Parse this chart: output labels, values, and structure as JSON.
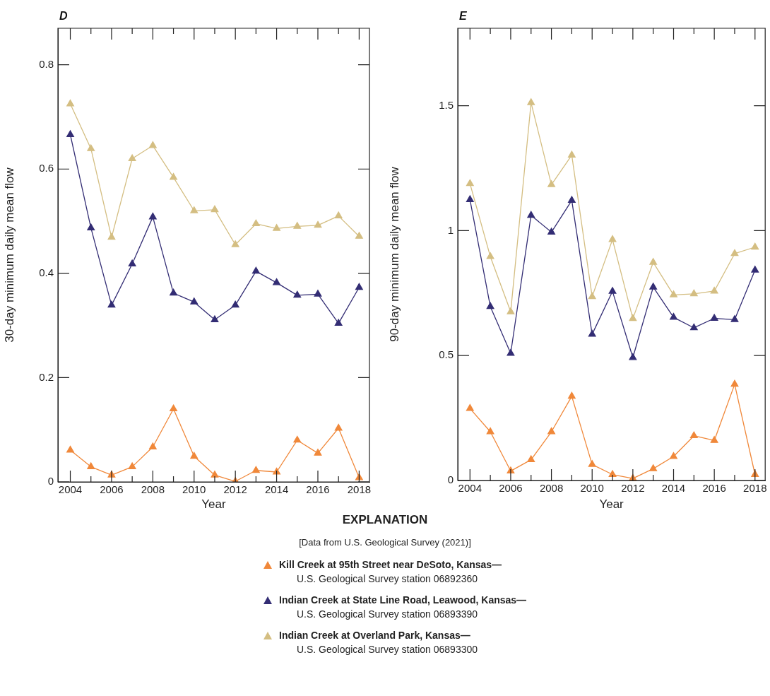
{
  "chart_data": [
    {
      "type": "line",
      "title": "D",
      "xlabel": "Year",
      "ylabel": "30-day minimum daily mean flow",
      "legend_title": "EXPLANATION",
      "annotations": [
        "[Data from U.S. Geological Survey (2021)]"
      ],
      "legend": "bottom",
      "marker": "triangle",
      "x": [
        2004,
        2005,
        2006,
        2007,
        2008,
        2009,
        2010,
        2011,
        2012,
        2013,
        2014,
        2015,
        2016,
        2017,
        2018
      ],
      "xlim": [
        2003.4,
        2018.5
      ],
      "xticks": [
        2004,
        {
          "value": 2005,
          "label": null
        },
        2006,
        {
          "value": 2007,
          "label": null
        },
        2008,
        {
          "value": 2009,
          "label": null
        },
        2010,
        {
          "value": 2011,
          "label": null
        },
        2012,
        {
          "value": 2013,
          "label": null
        },
        2014,
        {
          "value": 2015,
          "label": null
        },
        2016,
        {
          "value": 2017,
          "label": null
        },
        2018
      ],
      "ylim": [
        0,
        0.87
      ],
      "yticks": [
        0,
        0.2,
        0.4,
        0.6,
        0.8
      ],
      "series": [
        {
          "name": "Kill Creek at 95th Street near DeSoto, Kansas—\nU.S. Geological Survey station 06892360",
          "color": "#f0883a",
          "values": [
            0.061,
            0.029,
            0.013,
            0.029,
            0.067,
            0.14,
            0.049,
            0.013,
            0.001,
            0.022,
            0.019,
            0.08,
            0.055,
            0.103,
            0.008
          ]
        },
        {
          "name": "Indian Creek at State Line Road, Leawood, Kansas—\nU.S. Geological Survey station 06893390",
          "color": "#332d74",
          "values": [
            0.666,
            0.487,
            0.339,
            0.418,
            0.508,
            0.362,
            0.345,
            0.311,
            0.339,
            0.404,
            0.382,
            0.358,
            0.36,
            0.304,
            0.373
          ]
        },
        {
          "name": "Indian Creek at Overland Park, Kansas—\nU.S. Geological Survey station 06893300",
          "color": "#d4be82",
          "values": [
            0.725,
            0.639,
            0.469,
            0.62,
            0.645,
            0.584,
            0.52,
            0.522,
            0.455,
            0.495,
            0.486,
            0.49,
            0.492,
            0.51,
            0.471
          ]
        }
      ]
    },
    {
      "type": "line",
      "title": "E",
      "xlabel": "Year",
      "ylabel": "90-day minimum daily mean flow",
      "marker": "triangle",
      "x": [
        2004,
        2005,
        2006,
        2007,
        2008,
        2009,
        2010,
        2011,
        2012,
        2013,
        2014,
        2015,
        2016,
        2017,
        2018
      ],
      "xlim": [
        2003.4,
        2018.5
      ],
      "xticks": [
        2004,
        {
          "value": 2005,
          "label": null
        },
        2006,
        {
          "value": 2007,
          "label": null
        },
        2008,
        {
          "value": 2009,
          "label": null
        },
        2010,
        {
          "value": 2011,
          "label": null
        },
        2012,
        {
          "value": 2013,
          "label": null
        },
        2014,
        {
          "value": 2015,
          "label": null
        },
        2016,
        {
          "value": 2017,
          "label": null
        },
        2018
      ],
      "ylim": [
        0,
        1.81
      ],
      "yticks": [
        0,
        0.5,
        1,
        1.5
      ],
      "series": [
        {
          "color": "#f0883a",
          "values": [
            0.288,
            0.195,
            0.038,
            0.083,
            0.195,
            0.337,
            0.064,
            0.024,
            0.008,
            0.047,
            0.096,
            0.179,
            0.16,
            0.385,
            0.024
          ]
        },
        {
          "color": "#332d74",
          "values": [
            1.124,
            0.696,
            0.509,
            1.061,
            0.994,
            1.121,
            0.585,
            0.757,
            0.492,
            0.774,
            0.653,
            0.611,
            0.649,
            0.644,
            0.842
          ]
        },
        {
          "color": "#d4be82",
          "values": [
            1.188,
            0.896,
            0.675,
            1.512,
            1.184,
            1.302,
            0.736,
            0.964,
            0.648,
            0.873,
            0.743,
            0.747,
            0.758,
            0.908,
            0.934
          ]
        }
      ]
    }
  ]
}
